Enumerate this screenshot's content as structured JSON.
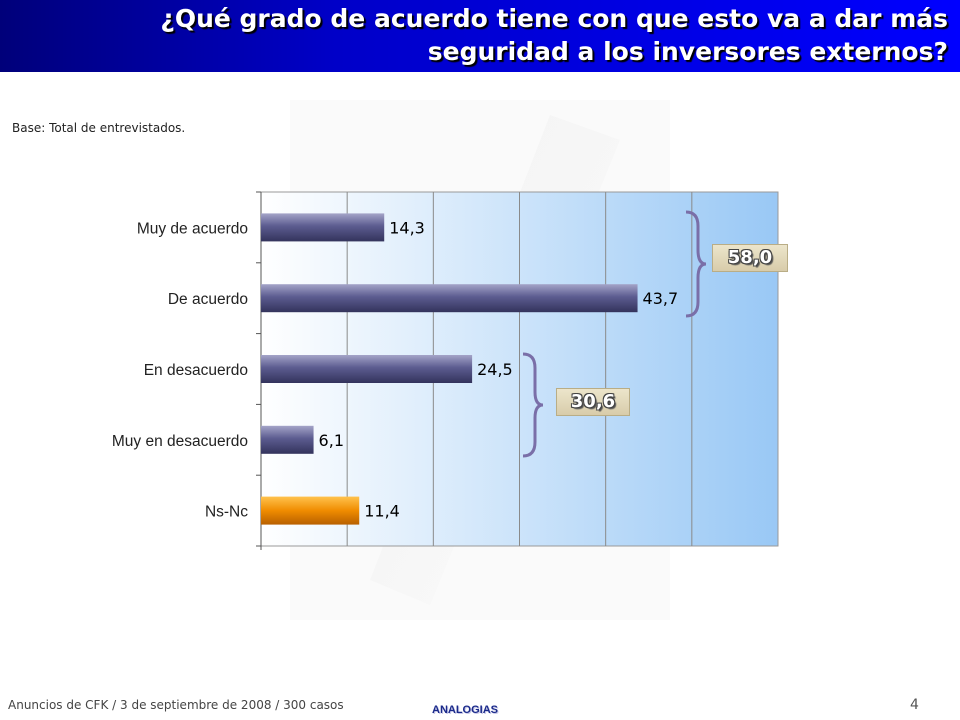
{
  "header": {
    "title_line1": "¿Qué grado de acuerdo tiene con que esto va a dar más",
    "title_line2": "seguridad a los inversores externos?"
  },
  "base_note": "Base: Total de  entrevistados.",
  "chart_data": {
    "type": "bar",
    "orientation": "horizontal",
    "categories": [
      "Muy de acuerdo",
      "De acuerdo",
      "En desacuerdo",
      "Muy en desacuerdo",
      "Ns-Nc"
    ],
    "values": [
      14.3,
      43.7,
      24.5,
      6.1,
      11.4
    ],
    "value_labels": [
      "14,3",
      "43,7",
      "24,5",
      "6,1",
      "11,4"
    ],
    "xlim": [
      0,
      60
    ],
    "grid": true,
    "colors": {
      "default_bar": "#5a5a8c",
      "highlight_bar": "#f08c00",
      "plot_bg_start": "#ffffff",
      "plot_bg_end": "#99c8f5",
      "brace": "#7a6fa8"
    },
    "highlight_index": 4,
    "groups": [
      {
        "label": "58,0",
        "value": 58.0,
        "members": [
          "Muy de acuerdo",
          "De acuerdo"
        ]
      },
      {
        "label": "30,6",
        "value": 30.6,
        "members": [
          "En desacuerdo",
          "Muy en desacuerdo"
        ]
      }
    ]
  },
  "footer": {
    "source": "Anuncios  de CFK / 3 de septiembre de 2008 / 300 casos",
    "brand": "ANALOGIAS",
    "page": "4"
  }
}
